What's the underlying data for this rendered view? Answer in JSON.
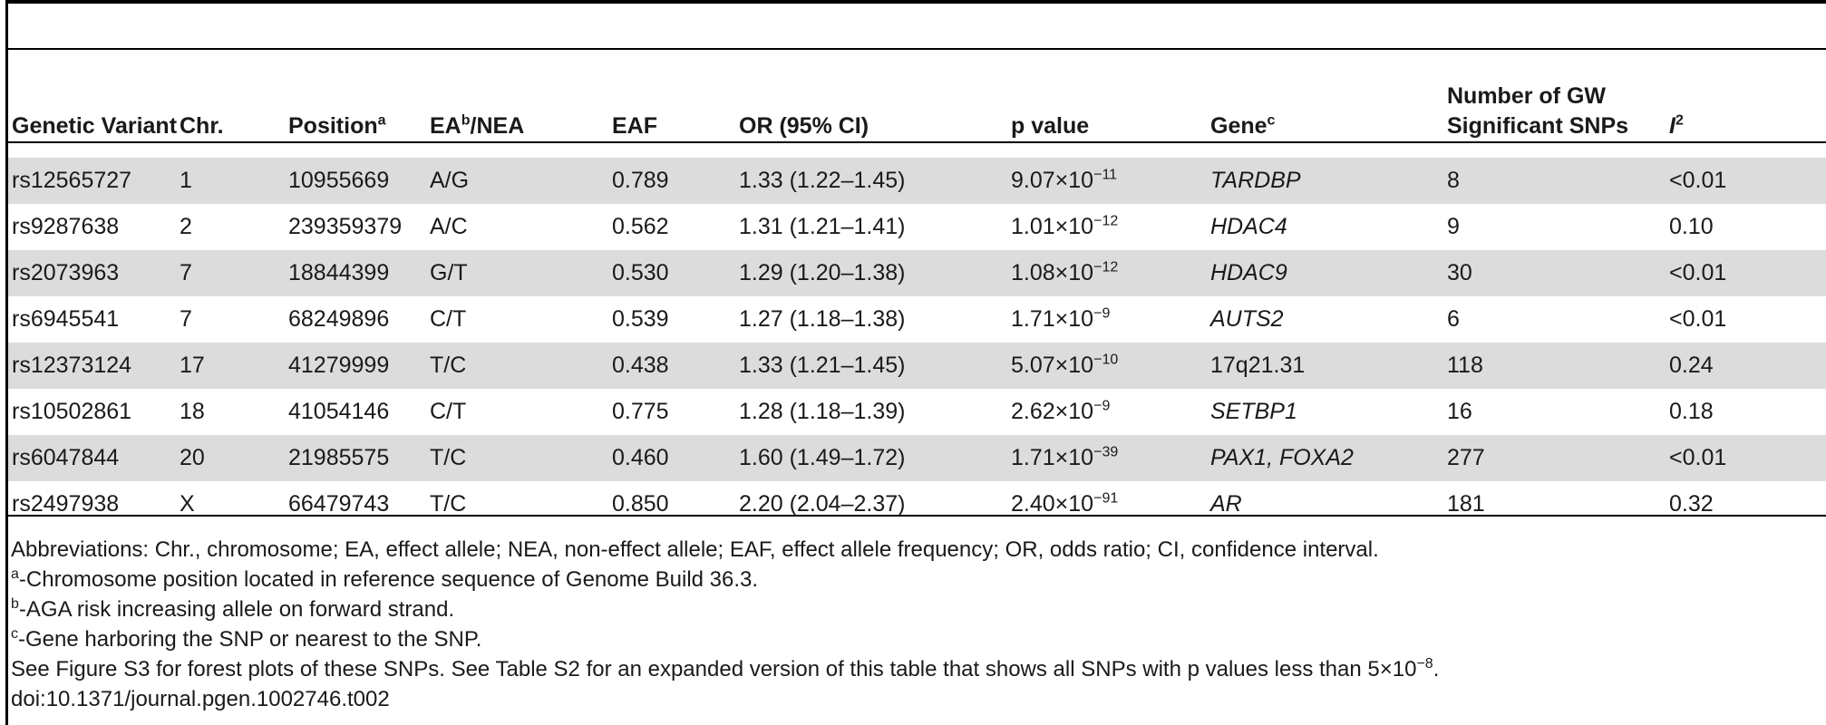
{
  "table": {
    "headers": {
      "variant": "Genetic Variant",
      "chr": "Chr.",
      "position": "Position",
      "position_sup": "a",
      "ea": "EA",
      "ea_sup": "b",
      "nea": "/NEA",
      "eaf": "EAF",
      "or": "OR (95% CI)",
      "pval": "p value",
      "gene": "Gene",
      "gene_sup": "c",
      "nsnp_line1": "Number of GW",
      "nsnp_line2": "Significant SNPs",
      "i2": "I",
      "i2_sup": "2"
    },
    "rows": [
      {
        "variant": "rs12565727",
        "chr": "1",
        "position": "10955669",
        "ea_nea": "A/G",
        "eaf": "0.789",
        "or": "1.33 (1.22–1.45)",
        "p_mant": "9.07",
        "p_exp": "−11",
        "gene": "TARDBP",
        "gene_italic": true,
        "nsnp": "8",
        "i2": "<0.01"
      },
      {
        "variant": "rs9287638",
        "chr": "2",
        "position": "239359379",
        "ea_nea": "A/C",
        "eaf": "0.562",
        "or": "1.31 (1.21–1.41)",
        "p_mant": "1.01",
        "p_exp": "−12",
        "gene": "HDAC4",
        "gene_italic": true,
        "nsnp": "9",
        "i2": "0.10"
      },
      {
        "variant": "rs2073963",
        "chr": "7",
        "position": "18844399",
        "ea_nea": "G/T",
        "eaf": "0.530",
        "or": "1.29 (1.20–1.38)",
        "p_mant": "1.08",
        "p_exp": "−12",
        "gene": "HDAC9",
        "gene_italic": true,
        "nsnp": "30",
        "i2": "<0.01"
      },
      {
        "variant": "rs6945541",
        "chr": "7",
        "position": "68249896",
        "ea_nea": "C/T",
        "eaf": "0.539",
        "or": "1.27 (1.18–1.38)",
        "p_mant": "1.71",
        "p_exp": "−9",
        "gene": "AUTS2",
        "gene_italic": true,
        "nsnp": "6",
        "i2": "<0.01"
      },
      {
        "variant": "rs12373124",
        "chr": "17",
        "position": "41279999",
        "ea_nea": "T/C",
        "eaf": "0.438",
        "or": "1.33 (1.21–1.45)",
        "p_mant": "5.07",
        "p_exp": "−10",
        "gene": "17q21.31",
        "gene_italic": false,
        "nsnp": "118",
        "i2": "0.24"
      },
      {
        "variant": "rs10502861",
        "chr": "18",
        "position": "41054146",
        "ea_nea": "C/T",
        "eaf": "0.775",
        "or": "1.28 (1.18–1.39)",
        "p_mant": "2.62",
        "p_exp": "−9",
        "gene": "SETBP1",
        "gene_italic": true,
        "nsnp": "16",
        "i2": "0.18"
      },
      {
        "variant": "rs6047844",
        "chr": "20",
        "position": "21985575",
        "ea_nea": "T/C",
        "eaf": "0.460",
        "or": "1.60 (1.49–1.72)",
        "p_mant": "1.71",
        "p_exp": "−39",
        "gene": "PAX1, FOXA2",
        "gene_italic": true,
        "nsnp": "277",
        "i2": "<0.01"
      },
      {
        "variant": "rs2497938",
        "chr": "X",
        "position": "66479743",
        "ea_nea": "T/C",
        "eaf": "0.850",
        "or": "2.20 (2.04–2.37)",
        "p_mant": "2.40",
        "p_exp": "−91",
        "gene": "AR",
        "gene_italic": true,
        "nsnp": "181",
        "i2": "0.32"
      }
    ],
    "times_symbol": "×10"
  },
  "notes": {
    "abbreviations": "Abbreviations: Chr., chromosome; EA, effect allele; NEA, non-effect allele; EAF, effect allele frequency; OR, odds ratio; CI, confidence interval.",
    "note_a_sup": "a",
    "note_a": "-Chromosome position located in reference sequence of Genome Build 36.3.",
    "note_b_sup": "b",
    "note_b": "-AGA risk increasing allele on forward strand.",
    "note_c_sup": "c",
    "note_c": "-Gene harboring the SNP or nearest to the SNP.",
    "see_also": "See Figure S3 for forest plots of these SNPs. See Table S2 for an expanded version of this table that shows all SNPs with p values less than 5×10",
    "see_also_exp": "−8",
    "see_also_end": ".",
    "doi": "doi:10.1371/journal.pgen.1002746.t002"
  }
}
